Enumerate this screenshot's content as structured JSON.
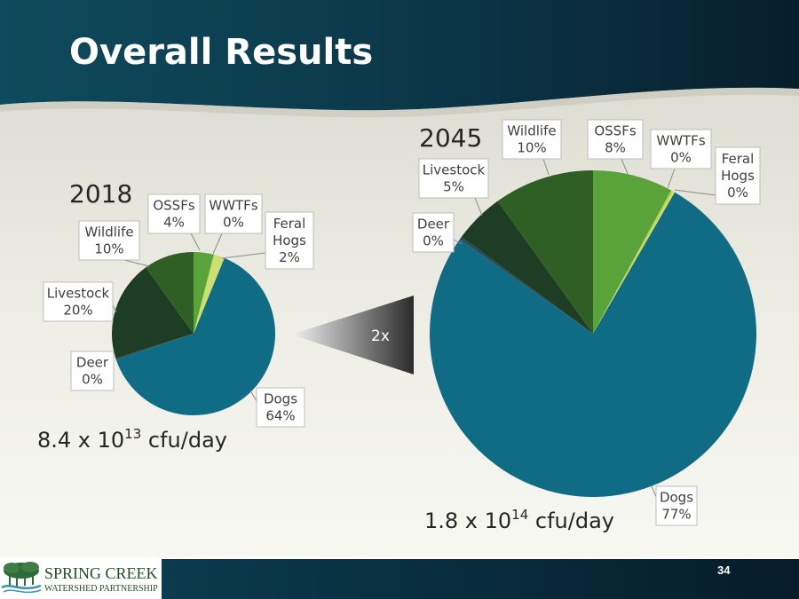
{
  "slide": {
    "title": "Overall Results",
    "page_number": "34",
    "growth_label": "2x",
    "logo": {
      "line1": "SPRING CREEK",
      "line2": "WATERSHED PARTNERSHIP"
    }
  },
  "colors": {
    "Dogs": "#106b85",
    "Deer": "#2a4a5c",
    "Livestock": "#1d3d24",
    "Wildlife": "#2f5f24",
    "OSSFs": "#5aa33a",
    "WWTFs": "#b9d24a",
    "Feral Hogs": "#cbe070"
  },
  "chart_data": [
    {
      "type": "pie",
      "title": "2018",
      "total_prefix": "8.4 x 10",
      "total_exponent": "13",
      "total_unit": " cfu/day",
      "slices": [
        {
          "name": "OSSFs",
          "value": 4,
          "pct_label": "4%"
        },
        {
          "name": "WWTFs",
          "value": 0.2,
          "pct_label": "0%"
        },
        {
          "name": "Feral Hogs",
          "value": 2,
          "pct_label": "2%"
        },
        {
          "name": "Dogs",
          "value": 64,
          "pct_label": "64%"
        },
        {
          "name": "Deer",
          "value": 0.3,
          "pct_label": "0%"
        },
        {
          "name": "Livestock",
          "value": 20,
          "pct_label": "20%"
        },
        {
          "name": "Wildlife",
          "value": 10,
          "pct_label": "10%"
        }
      ]
    },
    {
      "type": "pie",
      "title": "2045",
      "total_prefix": "1.8 x 10",
      "total_exponent": "14",
      "total_unit": " cfu/day",
      "slices": [
        {
          "name": "OSSFs",
          "value": 8,
          "pct_label": "8%"
        },
        {
          "name": "WWTFs",
          "value": 0.2,
          "pct_label": "0%"
        },
        {
          "name": "Feral Hogs",
          "value": 0.2,
          "pct_label": "0%"
        },
        {
          "name": "Dogs",
          "value": 77,
          "pct_label": "77%"
        },
        {
          "name": "Deer",
          "value": 0.3,
          "pct_label": "0%"
        },
        {
          "name": "Livestock",
          "value": 5,
          "pct_label": "5%"
        },
        {
          "name": "Wildlife",
          "value": 10,
          "pct_label": "10%"
        }
      ]
    }
  ]
}
